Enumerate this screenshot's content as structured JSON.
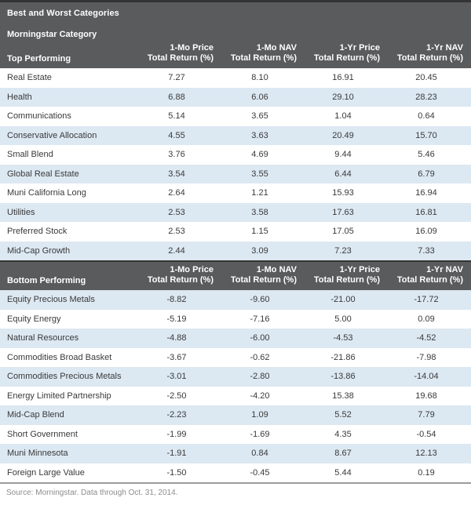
{
  "header": {
    "title": "Best and Worst Categories",
    "subtitle": "Morningstar Category"
  },
  "column_headers": [
    {
      "line1": "1-Mo Price",
      "line2": "Total Return (%)"
    },
    {
      "line1": "1-Mo NAV",
      "line2": "Total Return (%)"
    },
    {
      "line1": "1-Yr Price",
      "line2": "Total Return (%)"
    },
    {
      "line1": "1-Yr NAV",
      "line2": "Total Return (%)"
    }
  ],
  "chart_data": [
    {
      "type": "table",
      "section_label": "Top Performing",
      "columns": [
        "Morningstar Category",
        "1-Mo Price Total Return (%)",
        "1-Mo NAV Total Return (%)",
        "1-Yr Price Total Return (%)",
        "1-Yr NAV Total Return (%)"
      ],
      "rows": [
        [
          "Real Estate",
          "7.27",
          "8.10",
          "16.91",
          "20.45"
        ],
        [
          "Health",
          "6.88",
          "6.06",
          "29.10",
          "28.23"
        ],
        [
          "Communications",
          "5.14",
          "3.65",
          "1.04",
          "0.64"
        ],
        [
          "Conservative Allocation",
          "4.55",
          "3.63",
          "20.49",
          "15.70"
        ],
        [
          "Small Blend",
          "3.76",
          "4.69",
          "9.44",
          "5.46"
        ],
        [
          "Global Real Estate",
          "3.54",
          "3.55",
          "6.44",
          "6.79"
        ],
        [
          "Muni California Long",
          "2.64",
          "1.21",
          "15.93",
          "16.94"
        ],
        [
          "Utilities",
          "2.53",
          "3.58",
          "17.63",
          "16.81"
        ],
        [
          "Preferred Stock",
          "2.53",
          "1.15",
          "17.05",
          "16.09"
        ],
        [
          "Mid-Cap Growth",
          "2.44",
          "3.09",
          "7.23",
          "7.33"
        ]
      ],
      "zebra_start": "white"
    },
    {
      "type": "table",
      "section_label": "Bottom Performing",
      "columns": [
        "Morningstar Category",
        "1-Mo Price Total Return (%)",
        "1-Mo NAV Total Return (%)",
        "1-Yr Price Total Return (%)",
        "1-Yr NAV Total Return (%)"
      ],
      "rows": [
        [
          "Equity Precious Metals",
          "-8.82",
          "-9.60",
          "-21.00",
          "-17.72"
        ],
        [
          "Equity Energy",
          "-5.19",
          "-7.16",
          "5.00",
          "0.09"
        ],
        [
          "Natural Resources",
          "-4.88",
          "-6.00",
          "-4.53",
          "-4.52"
        ],
        [
          "Commodities Broad Basket",
          "-3.67",
          "-0.62",
          "-21.86",
          "-7.98"
        ],
        [
          "Commodities Precious Metals",
          "-3.01",
          "-2.80",
          "-13.86",
          "-14.04"
        ],
        [
          "Energy Limited Partnership",
          "-2.50",
          "-4.20",
          "15.38",
          "19.68"
        ],
        [
          "Mid-Cap Blend",
          "-2.23",
          "1.09",
          "5.52",
          "7.79"
        ],
        [
          "Short Government",
          "-1.99",
          "-1.69",
          "4.35",
          "-0.54"
        ],
        [
          "Muni Minnesota",
          "-1.91",
          "0.84",
          "8.67",
          "12.13"
        ],
        [
          "Foreign Large Value",
          "-1.50",
          "-0.45",
          "5.44",
          "0.19"
        ]
      ],
      "zebra_start": "blue"
    }
  ],
  "footer": {
    "source": "Source: Morningstar. Data through Oct. 31, 2014."
  },
  "colors": {
    "header_bg": "#5a5b5d",
    "header_top_border": "#333333",
    "row_alt_bg": "#dce8f2",
    "text": "#3a3a3a",
    "muted_text": "#8d8d8d"
  }
}
